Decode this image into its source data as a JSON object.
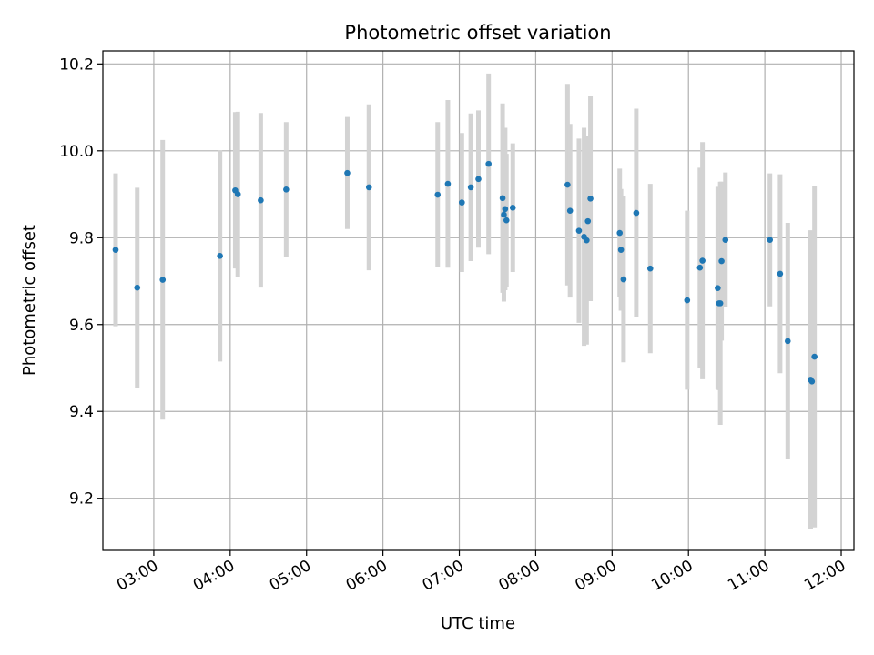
{
  "chart_data": {
    "type": "scatter",
    "title": "Photometric offset variation",
    "xlabel": "UTC time",
    "ylabel": "Photometric offset",
    "xlim": [
      "02:20",
      "12:10"
    ],
    "ylim": [
      9.08,
      10.23
    ],
    "xticks": [
      "03:00",
      "04:00",
      "05:00",
      "06:00",
      "07:00",
      "08:00",
      "09:00",
      "10:00",
      "11:00",
      "12:00"
    ],
    "yticks": [
      9.2,
      9.4,
      9.6,
      9.8,
      10.0,
      10.2
    ],
    "grid": true,
    "colors": {
      "point": "#1f77b4",
      "errorbar": "#d3d3d3",
      "grid": "#b0b0b0"
    },
    "series": [
      {
        "x": [
          "02:30",
          "02:47",
          "03:07",
          "03:52",
          "04:04",
          "04:06",
          "04:24",
          "04:44",
          "05:32",
          "05:49",
          "06:43",
          "06:51",
          "07:02",
          "07:09",
          "07:15",
          "07:23",
          "07:34",
          "07:35",
          "07:36",
          "07:37",
          "07:42",
          "08:25",
          "08:27",
          "08:34",
          "08:38",
          "08:40",
          "08:41",
          "08:43",
          "09:06",
          "09:07",
          "09:09",
          "09:19",
          "09:30",
          "09:59",
          "10:09",
          "10:11",
          "10:23",
          "10:24",
          "10:25",
          "10:26",
          "10:29",
          "11:04",
          "11:12",
          "11:18",
          "11:36",
          "11:37",
          "11:39"
        ],
        "y": [
          9.772,
          9.685,
          9.703,
          9.758,
          9.909,
          9.9,
          9.886,
          9.911,
          9.949,
          9.916,
          9.899,
          9.924,
          9.881,
          9.916,
          9.935,
          9.97,
          9.891,
          9.853,
          9.866,
          9.84,
          9.869,
          9.922,
          9.862,
          9.816,
          9.802,
          9.794,
          9.838,
          9.89,
          9.811,
          9.772,
          9.704,
          9.857,
          9.729,
          9.656,
          9.731,
          9.747,
          9.684,
          9.649,
          9.649,
          9.746,
          9.795,
          9.795,
          9.717,
          9.562,
          9.473,
          9.469,
          9.526
        ],
        "err": [
          0.176,
          0.23,
          0.322,
          0.243,
          0.18,
          0.19,
          0.201,
          0.155,
          0.129,
          0.191,
          0.167,
          0.193,
          0.16,
          0.17,
          0.158,
          0.208,
          0.218,
          0.2,
          0.187,
          0.153,
          0.148,
          0.232,
          0.2,
          0.212,
          0.251,
          0.24,
          0.18,
          0.236,
          0.148,
          0.14,
          0.191,
          0.24,
          0.195,
          0.206,
          0.23,
          0.273,
          0.233,
          0.2,
          0.28,
          0.183,
          0.155,
          0.153,
          0.229,
          0.272,
          0.344,
          0.33,
          0.393
        ]
      }
    ]
  }
}
